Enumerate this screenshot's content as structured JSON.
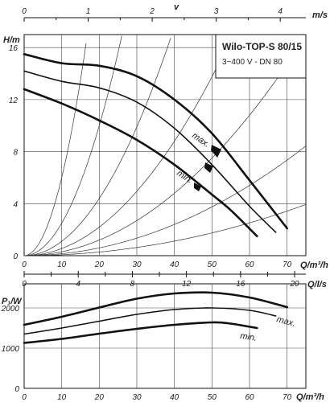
{
  "chart_data": [
    {
      "type": "line",
      "title": "Wilo-TOP-S 80/15",
      "subtitle": "3~400 V - DN 80",
      "xlabel": "Q/m³/h",
      "ylabel": "H/m",
      "xlim": [
        0,
        75
      ],
      "ylim": [
        0,
        17
      ],
      "x_ticks": [
        "0",
        "10",
        "20",
        "30",
        "40",
        "50",
        "60",
        "70"
      ],
      "y_ticks": [
        "0",
        "4",
        "8",
        "12",
        "16"
      ],
      "top_axis": {
        "label": "v",
        "unit": "m/s",
        "ticks": [
          "0",
          "1",
          "2",
          "3",
          "4"
        ],
        "max_value": 4.4
      },
      "grid": true,
      "series": [
        {
          "name": "max.",
          "x": [
            0,
            10,
            20,
            30,
            40,
            50,
            60,
            70
          ],
          "y": [
            15.5,
            14.8,
            14.6,
            13.8,
            12.0,
            9.4,
            5.8,
            2.1
          ]
        },
        {
          "name": "",
          "x": [
            0,
            10,
            20,
            30,
            40,
            50,
            60,
            67
          ],
          "y": [
            14.2,
            13.4,
            12.9,
            11.8,
            9.8,
            7.0,
            3.8,
            1.8
          ]
        },
        {
          "name": "min.",
          "x": [
            0,
            10,
            20,
            30,
            40,
            50,
            55,
            62
          ],
          "y": [
            12.8,
            11.7,
            10.4,
            8.9,
            7.0,
            4.7,
            3.5,
            1.5
          ]
        }
      ],
      "system_curve_k": [
        0.06,
        0.025,
        0.011,
        0.0055,
        0.003,
        0.0015,
        0.0007
      ]
    },
    {
      "type": "line",
      "xlabel": "Q/m³/h",
      "ylabel": "P₁/W",
      "xlim": [
        0,
        75
      ],
      "ylim": [
        0,
        2600
      ],
      "x_ticks": [
        "0",
        "10",
        "20",
        "30",
        "40",
        "50",
        "60",
        "70"
      ],
      "y_ticks": [
        "0",
        "1000",
        "2000"
      ],
      "top_axis": {
        "label": "",
        "unit": "Q/l/s",
        "ticks": [
          "0",
          "4",
          "8",
          "12",
          "16",
          "20"
        ],
        "max_value": 20.83
      },
      "grid": true,
      "series": [
        {
          "name": "max.",
          "x": [
            0,
            10,
            20,
            30,
            40,
            50,
            60,
            70
          ],
          "y": [
            1580,
            1780,
            2010,
            2230,
            2360,
            2380,
            2260,
            2020
          ]
        },
        {
          "name": "min.",
          "x": [
            0,
            10,
            20,
            30,
            40,
            50,
            55,
            62
          ],
          "y": [
            1130,
            1230,
            1360,
            1480,
            1580,
            1640,
            1610,
            1500
          ]
        },
        {
          "name": "",
          "x": [
            0,
            10,
            20,
            30,
            40,
            50,
            60,
            67
          ],
          "y": [
            1350,
            1500,
            1670,
            1840,
            1960,
            2000,
            1940,
            1800
          ]
        }
      ]
    }
  ],
  "icons": {
    "max_marker": "filled-arrow-marker",
    "mid_marker": "filled-arrow-marker",
    "min_marker": "filled-arrow-marker"
  }
}
